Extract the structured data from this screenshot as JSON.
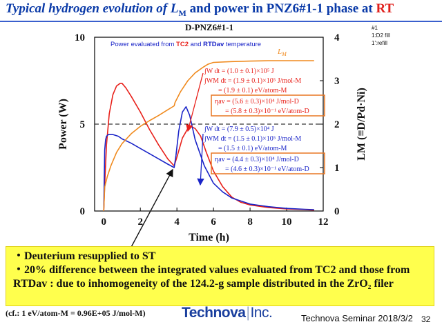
{
  "slide": {
    "title_main": "Typical hydrogen evolution of L",
    "title_sub": "M",
    "title_mid": " and power in PNZ6#1-1 phase at ",
    "title_rt": "RT",
    "notes": [
      "#1",
      "1:D2 fill",
      "1':refill"
    ],
    "callout": [
      "・Deuterium resupplied to ST",
      "・20% difference between the integrated values evaluated from TC2 and those from RTDav : due to inhomogeneity of the 124.2-g sample distributed in the ZrO₂ filer"
    ],
    "footer_cf": "(cf.: 1 eV/atom-M = 0.96E+05 J/mol-M)",
    "logo_left": "Technova",
    "logo_sep": "|",
    "logo_right": "Inc.",
    "seminar": "Technova Seminar 2018/3/2",
    "page_number": "32"
  },
  "chart_data": {
    "type": "line",
    "title": "D-PNZ6#1-1",
    "subtitle_parts": [
      "Power evaluated  from ",
      "TC2",
      " and ",
      "RTDav",
      " temperature"
    ],
    "xlabel": "Time  (h)",
    "ylabel_left": "Power   (W)",
    "ylabel_right": "LM  (≡D/Pd·Ni)",
    "x_ticks": [
      0,
      2,
      4,
      6,
      8,
      10,
      12
    ],
    "y_left_ticks": [
      0,
      5,
      10
    ],
    "y_right_ticks": [
      0,
      1,
      2,
      3,
      4
    ],
    "xlim": [
      -0.5,
      12
    ],
    "ylim_left": [
      0,
      10
    ],
    "ylim_right": [
      0,
      4
    ],
    "dashed_reference_left": 5,
    "colors": {
      "tc2": "#e8201a",
      "rtdav": "#1a24c8",
      "lm": "#f08a1e",
      "dark_blue": "#1a2a90",
      "box": "#e87722"
    },
    "series": [
      {
        "name": "TC2",
        "axis": "left",
        "color": "#e8201a",
        "x": [
          0.0,
          0.05,
          0.15,
          0.3,
          0.5,
          0.7,
          0.9,
          1.0,
          1.2,
          1.5,
          2.0,
          2.5,
          3.0,
          3.5,
          3.85,
          4.0,
          4.3,
          4.6,
          4.8,
          5.0,
          5.3,
          5.6,
          6.0,
          6.5,
          7.0,
          7.5,
          8.0,
          9.0,
          10.0,
          11.0,
          11.5
        ],
        "y": [
          0.0,
          1.5,
          3.8,
          5.6,
          6.7,
          7.2,
          7.35,
          7.35,
          7.1,
          6.6,
          5.7,
          4.7,
          3.8,
          3.0,
          2.6,
          3.1,
          4.2,
          4.75,
          4.85,
          4.75,
          4.3,
          3.4,
          2.3,
          1.4,
          0.8,
          0.5,
          0.35,
          0.2,
          0.12,
          0.08,
          0.05
        ]
      },
      {
        "name": "RTDav",
        "axis": "left",
        "color": "#1a24c8",
        "x": [
          0.0,
          0.05,
          0.1,
          0.15,
          0.25,
          0.5,
          0.8,
          1.0,
          1.5,
          2.0,
          2.5,
          3.0,
          3.5,
          3.85,
          3.95,
          4.1,
          4.3,
          4.5,
          4.7,
          5.0,
          5.5,
          6.0,
          6.5,
          7.0,
          8.0,
          9.0,
          10.0,
          11.0,
          11.5
        ],
        "y": [
          0.0,
          3.5,
          4.1,
          4.3,
          4.4,
          4.4,
          4.3,
          4.15,
          3.9,
          3.6,
          3.3,
          3.0,
          2.7,
          2.5,
          3.2,
          4.6,
          5.7,
          6.0,
          5.5,
          4.1,
          2.6,
          1.6,
          1.1,
          0.75,
          0.4,
          0.25,
          0.15,
          0.1,
          0.08
        ]
      },
      {
        "name": "LM",
        "axis": "right",
        "color": "#f08a1e",
        "x": [
          0.0,
          0.05,
          0.2,
          0.4,
          0.7,
          1.0,
          1.5,
          2.0,
          2.5,
          3.0,
          3.5,
          3.85,
          3.9,
          4.2,
          4.6,
          5.0,
          5.4,
          5.7,
          6.0,
          7.0,
          8.0,
          9.0,
          10.0,
          11.0,
          11.5
        ],
        "y": [
          0.0,
          0.55,
          0.8,
          1.05,
          1.35,
          1.55,
          1.78,
          1.95,
          2.08,
          2.2,
          2.33,
          2.42,
          2.5,
          2.75,
          3.0,
          3.18,
          3.3,
          3.38,
          3.42,
          3.44,
          3.45,
          3.46,
          3.46,
          3.46,
          3.46
        ]
      }
    ],
    "annotations": {
      "lm_label": "L",
      "lm_label_sub": "M",
      "tc2": {
        "lines": [
          "∫W dt = (1.0 ± 0.1)×10⁵ J",
          "∫WM dt = (1.9 ± 0.1)×10⁵ J/mol-M",
          "= (1.9 ± 0.1) eV/atom-M"
        ],
        "box": [
          "ηav = (5.6 ± 0.3)×10⁴ J/mol-D",
          "= (5.8 ± 0.3)×10⁻¹ eV/atom-D"
        ]
      },
      "rtdav": {
        "lines": [
          "∫W dt = (7.9 ± 0.5)×10⁴ J",
          "∫WM dt = (1.5 ± 0.1)×10⁵ J/mol-M",
          "= (1.5 ± 0.1) eV/atom-M"
        ],
        "box": [
          "ηav = (4.4 ± 0.3)×10⁴ J/mol-D",
          "= (4.6 ± 0.3)×10⁻¹ eV/atom-D"
        ]
      }
    }
  }
}
